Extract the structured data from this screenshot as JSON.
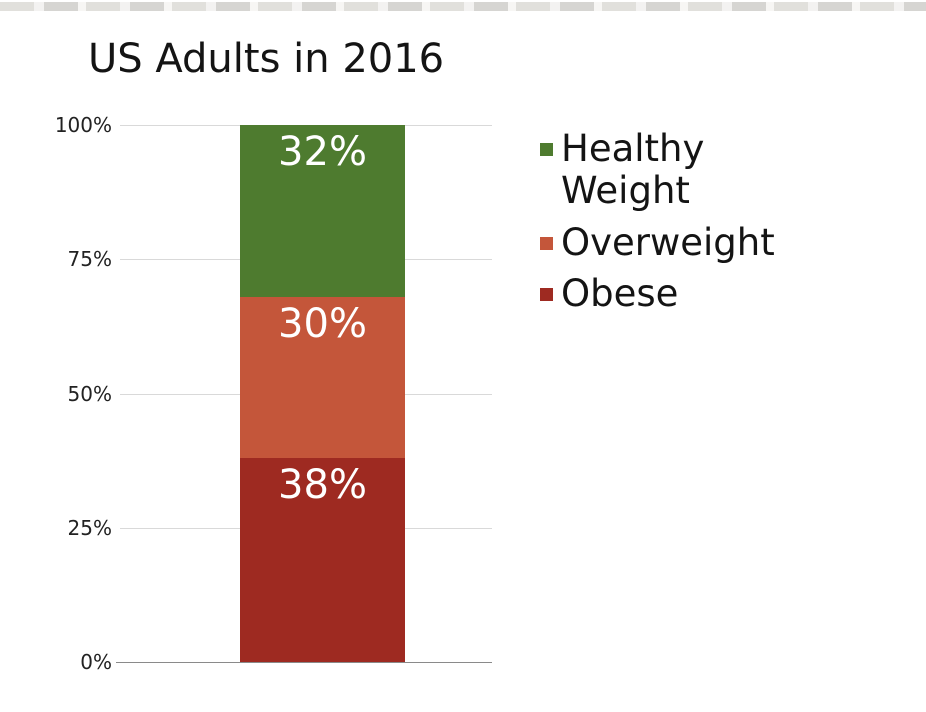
{
  "chart_data": {
    "type": "bar",
    "subtype": "stacked-single-column",
    "title": "US Adults in 2016",
    "categories": [
      "US Adults in 2016"
    ],
    "series": [
      {
        "name": "Healthy Weight",
        "values": [
          32
        ],
        "label": "32%",
        "color": "#4e7b2f"
      },
      {
        "name": "Overweight",
        "values": [
          30
        ],
        "label": "30%",
        "color": "#c4563a"
      },
      {
        "name": "Obese",
        "values": [
          38
        ],
        "label": "38%",
        "color": "#9e2a21"
      }
    ],
    "stack_top_to_bottom": [
      "Healthy Weight",
      "Overweight",
      "Obese"
    ],
    "ylim": [
      0,
      100
    ],
    "yticks": [
      "0%",
      "25%",
      "50%",
      "75%",
      "100%"
    ],
    "grid": true,
    "legend_position": "right"
  },
  "legend": {
    "items": [
      {
        "label": "Healthy Weight",
        "color": "#4e7b2f"
      },
      {
        "label": "Overweight",
        "color": "#c4563a"
      },
      {
        "label": "Obese",
        "color": "#9e2a21"
      }
    ]
  },
  "colors": {
    "gridline": "#d9d9d9",
    "axis_line": "#8a8a8a",
    "text": "#141414",
    "data_label_text": "#ffffff"
  }
}
